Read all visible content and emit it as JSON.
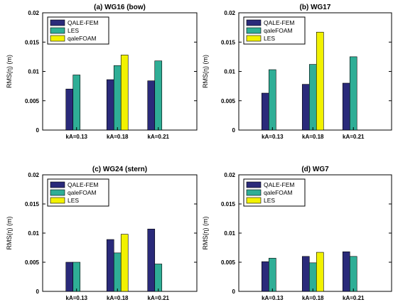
{
  "colors": {
    "qale_fem": "#2a2a7a",
    "les": "#2fae96",
    "qalefoam": "#f2f200",
    "axis": "#000000",
    "background": "#ffffff"
  },
  "chart_data": [
    {
      "type": "bar",
      "title": "(a) WG16 (bow)",
      "ylabel": "RMS(η) (m)",
      "categories": [
        "kA=0.13",
        "kA=0.18",
        "kA=0.21"
      ],
      "ylim": [
        0,
        0.02
      ],
      "yticks": [
        "0",
        "0.005",
        "0.01",
        "0.015",
        "0.02"
      ],
      "legend_position": "top-left",
      "series": [
        {
          "name": "QALE-FEM",
          "color_key": "qale_fem",
          "values": [
            0.007,
            0.0086,
            0.0084
          ]
        },
        {
          "name": "LES",
          "color_key": "les",
          "values": [
            0.0094,
            0.011,
            0.0118
          ]
        },
        {
          "name": "qaleFOAM",
          "color_key": "qalefoam",
          "values": [
            null,
            0.0128,
            null
          ]
        }
      ]
    },
    {
      "type": "bar",
      "title": "(b) WG17",
      "ylabel": "RMS(η) (m)",
      "categories": [
        "kA=0.13",
        "kA=0.18",
        "kA=0.21"
      ],
      "ylim": [
        0,
        0.02
      ],
      "yticks": [
        "0",
        "0.005",
        "0.01",
        "0.015",
        "0.02"
      ],
      "legend_position": "top-left",
      "series": [
        {
          "name": "QALE-FEM",
          "color_key": "qale_fem",
          "values": [
            0.0063,
            0.0078,
            0.008
          ]
        },
        {
          "name": "qaleFOAM",
          "color_key": "les",
          "values": [
            0.0103,
            0.0112,
            0.0125
          ]
        },
        {
          "name": "LES",
          "color_key": "qalefoam",
          "values": [
            null,
            0.0167,
            null
          ]
        }
      ]
    },
    {
      "type": "bar",
      "title": "(c) WG24 (stern)",
      "ylabel": "RMS(η) (m)",
      "categories": [
        "kA=0.13",
        "kA=0.18",
        "kA=0.21"
      ],
      "ylim": [
        0,
        0.02
      ],
      "yticks": [
        "0",
        "0.005",
        "0.01",
        "0.015",
        "0.02"
      ],
      "legend_position": "top-left",
      "series": [
        {
          "name": "QALE-FEM",
          "color_key": "qale_fem",
          "values": [
            0.005,
            0.0089,
            0.0107
          ]
        },
        {
          "name": "qaleFOAM",
          "color_key": "les",
          "values": [
            0.005,
            0.0066,
            0.0047
          ]
        },
        {
          "name": "LES",
          "color_key": "qalefoam",
          "values": [
            null,
            0.0098,
            null
          ]
        }
      ]
    },
    {
      "type": "bar",
      "title": "(d) WG7",
      "ylabel": "RMS(η) (m)",
      "categories": [
        "kA=0.13",
        "kA=0.18",
        "kA=0.21"
      ],
      "ylim": [
        0,
        0.02
      ],
      "yticks": [
        "0",
        "0.005",
        "0.01",
        "0.015",
        "0.02"
      ],
      "legend_position": "top-left",
      "series": [
        {
          "name": "QALE-FEM",
          "color_key": "qale_fem",
          "values": [
            0.0051,
            0.006,
            0.0068
          ]
        },
        {
          "name": "qaleFOAM",
          "color_key": "les",
          "values": [
            0.0057,
            0.0049,
            0.006
          ]
        },
        {
          "name": "LES",
          "color_key": "qalefoam",
          "values": [
            null,
            0.0067,
            null
          ]
        }
      ]
    }
  ]
}
